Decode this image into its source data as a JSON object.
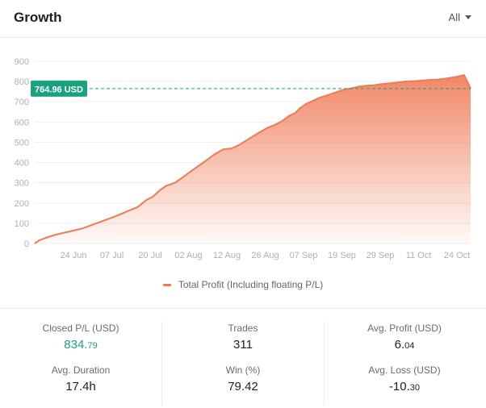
{
  "header": {
    "title": "Growth",
    "range": "All"
  },
  "legend": {
    "label": "Total Profit (Including floating P/L)"
  },
  "colors": {
    "series": "#f07a55",
    "marker": "#1aa27f",
    "accent_green": "#1a9e82"
  },
  "marker": {
    "label": "764.96 USD",
    "value": 764.96
  },
  "chart_data": {
    "type": "area",
    "y_ticks": [
      0,
      100,
      200,
      300,
      400,
      500,
      600,
      700,
      800,
      900
    ],
    "ylim": [
      0,
      900
    ],
    "x_tick_labels": [
      "24 Jun",
      "07 Jul",
      "20 Jul",
      "02 Aug",
      "12 Aug",
      "26 Aug",
      "07 Sep",
      "19 Sep",
      "29 Sep",
      "11 Oct",
      "24 Oct"
    ],
    "series": [
      {
        "name": "Total Profit (Including floating P/L)",
        "x": [
          0,
          2,
          5,
          9,
          13,
          17,
          22,
          27,
          32,
          37,
          42,
          47,
          51,
          54,
          57,
          60,
          64,
          68,
          72,
          77,
          82,
          86,
          90,
          93,
          96,
          99,
          102,
          106,
          110,
          113,
          116,
          119,
          121,
          124,
          127,
          130,
          133,
          137,
          141,
          144,
          148,
          152,
          155,
          158,
          161,
          165,
          169,
          173,
          177,
          180,
          184,
          188,
          192,
          196,
          199
        ],
        "values": [
          0,
          15,
          28,
          42,
          52,
          62,
          75,
          95,
          115,
          135,
          158,
          180,
          215,
          232,
          262,
          285,
          300,
          330,
          362,
          400,
          440,
          465,
          470,
          485,
          505,
          525,
          545,
          570,
          588,
          605,
          630,
          645,
          668,
          690,
          705,
          720,
          730,
          745,
          760,
          765,
          775,
          780,
          782,
          787,
          790,
          795,
          800,
          802,
          805,
          808,
          810,
          815,
          822,
          832,
          764.96
        ]
      }
    ],
    "reference_line": 764.96,
    "grid": true,
    "legend_position": "bottom"
  },
  "stats": {
    "closed_pl": {
      "label": "Closed P/L (USD)",
      "value_main": "834.",
      "value_small": "79"
    },
    "avg_duration": {
      "label": "Avg. Duration",
      "value": "17.4h"
    },
    "trades": {
      "label": "Trades",
      "value": "311"
    },
    "win": {
      "label": "Win (%)",
      "value": "79.42"
    },
    "avg_profit": {
      "label": "Avg. Profit (USD)",
      "value_main": "6.",
      "value_small": "04"
    },
    "avg_loss": {
      "label": "Avg. Loss (USD)",
      "value_main": "-10.",
      "value_small": "30"
    }
  }
}
